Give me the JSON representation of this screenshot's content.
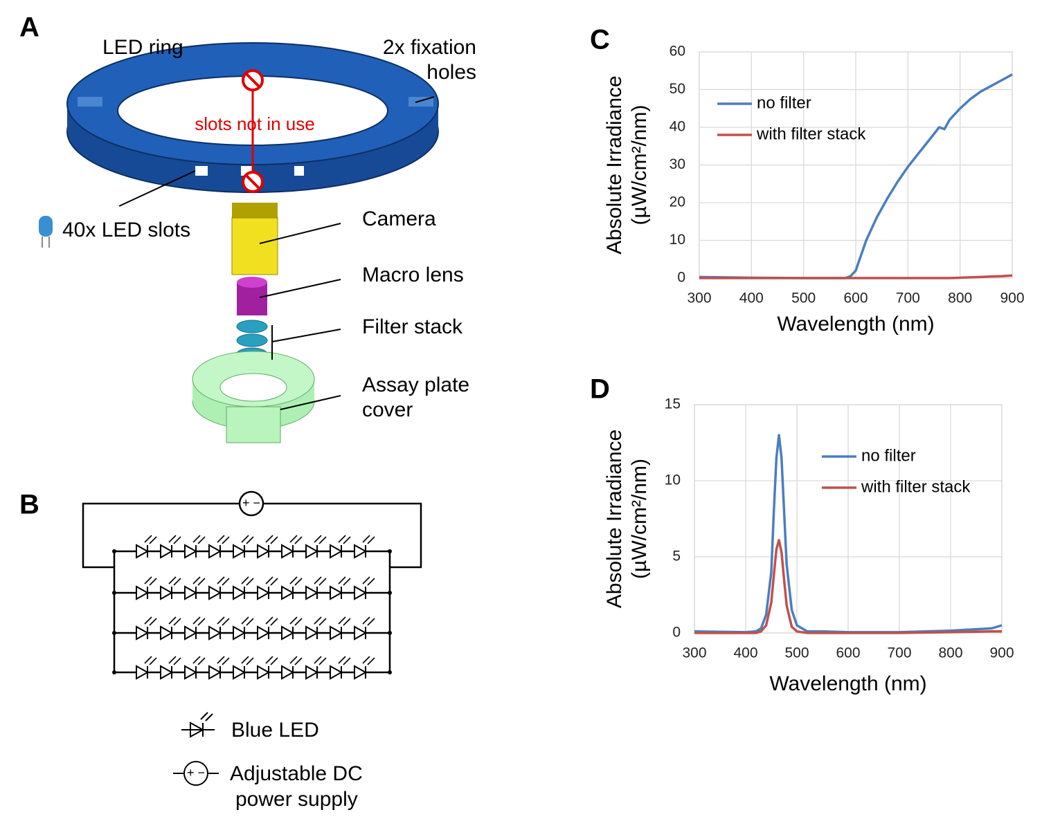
{
  "panels": {
    "a": "A",
    "b": "B",
    "c": "C",
    "d": "D"
  },
  "diagram": {
    "led_ring": "LED ring",
    "fixation_holes": [
      "2x fixation",
      "holes"
    ],
    "slots_not_in_use": "slots not in use",
    "led_slots": "40x LED slots",
    "camera": "Camera",
    "macro_lens": "Macro lens",
    "filter_stack": "Filter stack",
    "assay_plate_cover": [
      "Assay plate",
      "cover"
    ]
  },
  "circuit": {
    "blue_led": "Blue LED",
    "power_supply": [
      "Adjustable DC",
      "power supply"
    ]
  },
  "chart_data": [
    {
      "type": "line",
      "xlabel": "Wavelength (nm)",
      "ylabel": [
        "Absolute Irradiance",
        "(µW/cm²/nm)"
      ],
      "x": [
        300,
        400,
        500,
        580,
        590,
        600,
        610,
        620,
        640,
        660,
        680,
        700,
        720,
        740,
        760,
        770,
        780,
        800,
        820,
        840,
        860,
        880,
        900
      ],
      "series": [
        {
          "name": "no filter",
          "color": "#4a7ebf",
          "values": [
            0.3,
            0.1,
            0,
            0,
            0.5,
            2,
            6,
            10,
            16,
            21,
            25.5,
            29.5,
            33,
            36.5,
            40,
            39.5,
            42,
            45,
            47.5,
            49.5,
            51,
            52.5,
            54
          ]
        },
        {
          "name": "with filter stack",
          "color": "#c0504d",
          "values": [
            0,
            0,
            0,
            0,
            0,
            0,
            0,
            0,
            0,
            0,
            0,
            0,
            0,
            0,
            0,
            0,
            0,
            0.1,
            0.2,
            0.3,
            0.4,
            0.5,
            0.7
          ]
        }
      ],
      "xlim": [
        300,
        900
      ],
      "xticks": [
        300,
        400,
        500,
        600,
        700,
        800,
        900
      ],
      "ylim": [
        0,
        60
      ],
      "yticks": [
        0,
        10,
        20,
        30,
        40,
        50,
        60
      ],
      "grid": true,
      "legend": "upper left"
    },
    {
      "type": "line",
      "xlabel": "Wavelength (nm)",
      "ylabel": [
        "Absolute Irradiance",
        "(µW/cm²/nm)"
      ],
      "x": [
        300,
        400,
        420,
        430,
        440,
        450,
        455,
        460,
        465,
        470,
        475,
        480,
        490,
        500,
        520,
        550,
        600,
        700,
        800,
        880,
        900
      ],
      "series": [
        {
          "name": "no filter",
          "color": "#4a7ebf",
          "values": [
            0.1,
            0.05,
            0.1,
            0.3,
            1.2,
            4,
            8,
            11.5,
            13,
            11.5,
            8,
            4.5,
            1.5,
            0.5,
            0.1,
            0.1,
            0.05,
            0.05,
            0.15,
            0.3,
            0.5
          ]
        },
        {
          "name": "with filter stack",
          "color": "#c0504d",
          "values": [
            0,
            0,
            0,
            0.1,
            0.5,
            2,
            3.8,
            5.5,
            6.1,
            5.3,
            3.5,
            1.8,
            0.4,
            0.1,
            0,
            0,
            0,
            0,
            0.05,
            0.1,
            0.1
          ]
        }
      ],
      "xlim": [
        300,
        900
      ],
      "xticks": [
        300,
        400,
        500,
        600,
        700,
        800,
        900
      ],
      "ylim": [
        0,
        15
      ],
      "yticks": [
        0,
        5,
        10,
        15
      ],
      "grid": true,
      "legend": "upper right"
    }
  ]
}
